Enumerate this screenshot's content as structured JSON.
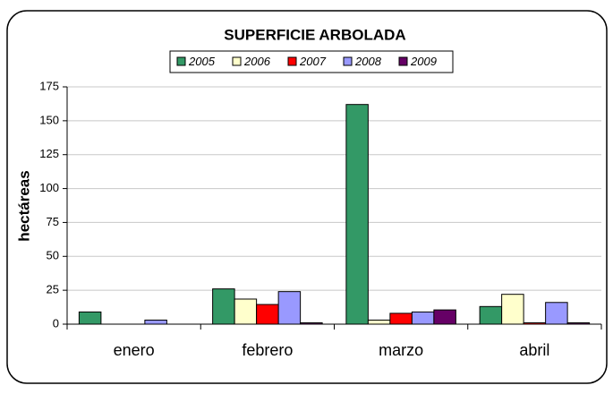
{
  "chart_data": {
    "type": "bar",
    "title": "SUPERFICIE ARBOLADA",
    "y_label": "hectáreas",
    "categories": [
      "enero",
      "febrero",
      "marzo",
      "abril"
    ],
    "series": [
      {
        "name": "2005",
        "color": "#339966",
        "values": [
          9,
          26,
          162,
          13
        ]
      },
      {
        "name": "2006",
        "color": "#FFFFCC",
        "values": [
          0,
          18.5,
          3,
          22
        ]
      },
      {
        "name": "2007",
        "color": "#FF0000",
        "values": [
          0,
          14.5,
          8,
          1
        ]
      },
      {
        "name": "2008",
        "color": "#9999FF",
        "values": [
          3,
          24,
          9,
          16
        ]
      },
      {
        "name": "2009",
        "color": "#660066",
        "values": [
          0,
          1,
          10.5,
          1
        ]
      }
    ],
    "ylim": [
      0,
      175
    ],
    "yticks": [
      0,
      25,
      50,
      75,
      100,
      125,
      150,
      175
    ],
    "grid": true,
    "legend": "top"
  }
}
